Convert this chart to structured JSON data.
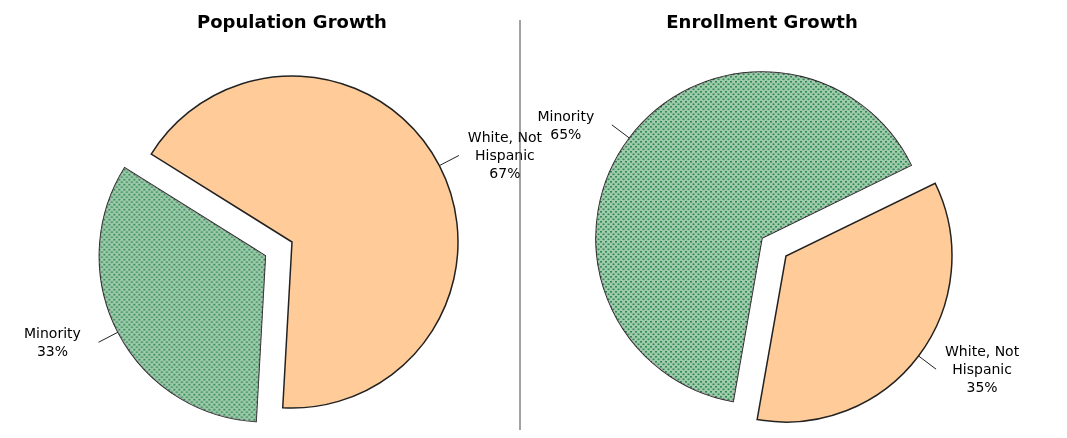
{
  "chart_data": [
    {
      "type": "pie",
      "title": "Population Growth",
      "categories": [
        "White, Not Hispanic",
        "Minority"
      ],
      "values": [
        67,
        33
      ],
      "value_labels": [
        "67%",
        "33%"
      ],
      "colors": [
        "#ffcc99",
        "#2e8b4e"
      ]
    },
    {
      "type": "pie",
      "title": "Enrollment Growth",
      "categories": [
        "Minority",
        "White, Not Hispanic"
      ],
      "values": [
        65,
        35
      ],
      "value_labels": [
        "65%",
        "35%"
      ],
      "colors": [
        "#2e8b4e",
        "#ffcc99"
      ]
    }
  ]
}
